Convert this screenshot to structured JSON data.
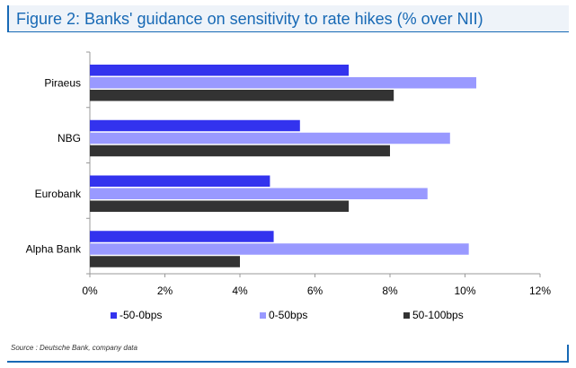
{
  "figure": {
    "title": "Figure 2: Banks' guidance on sensitivity to rate hikes (% over NII)",
    "source": "Source : Deutsche Bank, company data"
  },
  "colors": {
    "series_1": "#3333ee",
    "series_2": "#9999ff",
    "series_3": "#333333",
    "accent": "#1769b5",
    "title_background": "#eef3f9"
  },
  "chart_data": {
    "type": "bar",
    "orientation": "horizontal",
    "categories": [
      "Piraeus",
      "NBG",
      "Eurobank",
      "Alpha Bank"
    ],
    "series": [
      {
        "name": "-50-0bps",
        "values": [
          6.9,
          5.6,
          4.8,
          4.9
        ]
      },
      {
        "name": "0-50bps",
        "values": [
          10.3,
          9.6,
          9.0,
          10.1
        ]
      },
      {
        "name": "50-100bps",
        "values": [
          8.1,
          8.0,
          6.9,
          4.0
        ]
      }
    ],
    "x_ticks": [
      "0%",
      "2%",
      "4%",
      "6%",
      "8%",
      "10%",
      "12%"
    ],
    "xlim": [
      0,
      12
    ],
    "grid": false,
    "legend_position": "bottom"
  }
}
